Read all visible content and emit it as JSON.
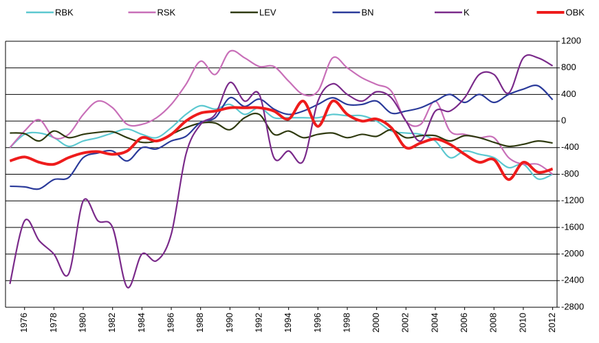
{
  "chart_data": {
    "type": "line",
    "x": [
      1975,
      1976,
      1977,
      1978,
      1979,
      1980,
      1981,
      1982,
      1983,
      1984,
      1985,
      1986,
      1987,
      1988,
      1989,
      1990,
      1991,
      1992,
      1993,
      1994,
      1995,
      1996,
      1997,
      1998,
      1999,
      2000,
      2001,
      2002,
      2003,
      2004,
      2005,
      2006,
      2007,
      2008,
      2009,
      2010,
      2011,
      2012
    ],
    "series": [
      {
        "name": "RBK",
        "color": "#5cc8d0",
        "values": [
          -400,
          -200,
          -180,
          -250,
          -380,
          -300,
          -250,
          -180,
          -120,
          -200,
          -250,
          -100,
          100,
          230,
          180,
          250,
          100,
          200,
          50,
          50,
          50,
          50,
          100,
          80,
          80,
          0,
          -150,
          -180,
          -200,
          -300,
          -550,
          -450,
          -500,
          -550,
          -700,
          -650,
          -870,
          -800
        ]
      },
      {
        "name": "RSK",
        "color": "#c86fb8",
        "values": [
          -400,
          -150,
          20,
          -250,
          -200,
          100,
          300,
          200,
          -50,
          -50,
          50,
          250,
          550,
          900,
          700,
          1050,
          950,
          820,
          820,
          600,
          400,
          450,
          950,
          800,
          650,
          550,
          450,
          0,
          -50,
          300,
          -150,
          -200,
          -250,
          -250,
          -550,
          -650,
          -650,
          -800
        ]
      },
      {
        "name": "LEV",
        "color": "#2f3a10",
        "values": [
          -180,
          -190,
          -300,
          -150,
          -250,
          -200,
          -170,
          -160,
          -250,
          -320,
          -300,
          -200,
          -100,
          -30,
          -30,
          -130,
          50,
          100,
          -200,
          -150,
          -250,
          -200,
          -180,
          -250,
          -200,
          -230,
          -130,
          -250,
          -220,
          -220,
          -300,
          -220,
          -250,
          -320,
          -380,
          -350,
          -300,
          -330
        ]
      },
      {
        "name": "BN",
        "color": "#2a3a9a",
        "values": [
          -980,
          -990,
          -1020,
          -880,
          -850,
          -550,
          -480,
          -450,
          -600,
          -400,
          -420,
          -300,
          -230,
          -20,
          50,
          350,
          220,
          330,
          180,
          100,
          150,
          250,
          350,
          250,
          250,
          300,
          120,
          150,
          200,
          300,
          400,
          280,
          400,
          280,
          400,
          480,
          530,
          320
        ]
      },
      {
        "name": "K",
        "color": "#7a2a8a",
        "values": [
          -2450,
          -1500,
          -1800,
          -2000,
          -2300,
          -1200,
          -1500,
          -1600,
          -2500,
          -2000,
          -2100,
          -1700,
          -500,
          -50,
          100,
          580,
          300,
          400,
          -550,
          -450,
          -600,
          300,
          560,
          400,
          300,
          440,
          350,
          0,
          -300,
          150,
          150,
          350,
          700,
          700,
          420,
          950,
          950,
          830
        ]
      },
      {
        "name": "OBK",
        "color": "#ee1c1c",
        "values": [
          -600,
          -540,
          -620,
          -650,
          -550,
          -480,
          -460,
          -500,
          -450,
          -250,
          -300,
          -200,
          0,
          120,
          150,
          200,
          200,
          200,
          150,
          30,
          300,
          -80,
          300,
          100,
          0,
          30,
          -100,
          -400,
          -330,
          -270,
          -350,
          -500,
          -620,
          -580,
          -880,
          -620,
          -770,
          -720
        ]
      }
    ],
    "xlim": [
      1974.7,
      2012.3
    ],
    "xticks": [
      1976,
      1978,
      1980,
      1982,
      1984,
      1986,
      1988,
      1990,
      1992,
      1994,
      1996,
      1998,
      2000,
      2002,
      2004,
      2006,
      2008,
      2010,
      2012
    ],
    "ylim": [
      -2800,
      1200
    ],
    "yticks": [
      -2800,
      -2400,
      -2000,
      -1600,
      -1200,
      -800,
      -400,
      0,
      400,
      800,
      1200
    ],
    "grid": true
  }
}
